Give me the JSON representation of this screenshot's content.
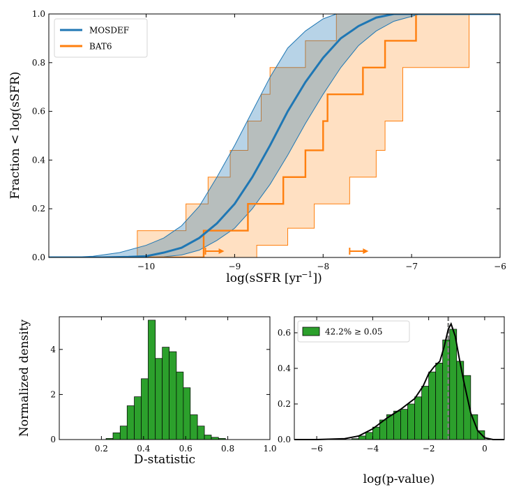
{
  "chart_data": [
    {
      "type": "line",
      "id": "cdf",
      "xlabel_main": "log(sSFR [yr",
      "xlabel_sup": "−1",
      "xlabel_close": "])",
      "ylabel": "Fraction < log(sSFR)",
      "xlim": [
        -11.1,
        -6.0
      ],
      "ylim": [
        0,
        1.0
      ],
      "xticks": [
        -10,
        -9,
        -8,
        -7,
        -6
      ],
      "xtick_labels": [
        "−10",
        "−9",
        "−8",
        "−7",
        "−6"
      ],
      "yticks": [
        0,
        0.2,
        0.4,
        0.6,
        0.8,
        1.0
      ],
      "ytick_labels": [
        "0.0",
        "0.2",
        "0.4",
        "0.6",
        "0.8",
        "1.0"
      ],
      "legend": [
        {
          "name": "MOSDEF",
          "color": "#1f77b4"
        },
        {
          "name": "BAT6",
          "color": "#ff7f0e"
        }
      ],
      "mosdef": {
        "color": "#1f77b4",
        "center": [
          [
            -11.1,
            0
          ],
          [
            -10.5,
            0.0
          ],
          [
            -10.2,
            0.002
          ],
          [
            -10.0,
            0.005
          ],
          [
            -9.8,
            0.02
          ],
          [
            -9.6,
            0.04
          ],
          [
            -9.4,
            0.08
          ],
          [
            -9.2,
            0.14
          ],
          [
            -9.0,
            0.22
          ],
          [
            -8.8,
            0.33
          ],
          [
            -8.6,
            0.46
          ],
          [
            -8.4,
            0.6
          ],
          [
            -8.2,
            0.72
          ],
          [
            -8.0,
            0.82
          ],
          [
            -7.8,
            0.9
          ],
          [
            -7.6,
            0.95
          ],
          [
            -7.4,
            0.985
          ],
          [
            -7.2,
            1.0
          ],
          [
            -6.0,
            1.0
          ]
        ],
        "lower": [
          [
            -11.1,
            0
          ],
          [
            -10.0,
            0.0
          ],
          [
            -9.8,
            0.003
          ],
          [
            -9.6,
            0.01
          ],
          [
            -9.4,
            0.03
          ],
          [
            -9.2,
            0.07
          ],
          [
            -9.0,
            0.12
          ],
          [
            -8.8,
            0.2
          ],
          [
            -8.6,
            0.3
          ],
          [
            -8.4,
            0.42
          ],
          [
            -8.2,
            0.55
          ],
          [
            -8.0,
            0.67
          ],
          [
            -7.8,
            0.78
          ],
          [
            -7.6,
            0.87
          ],
          [
            -7.4,
            0.93
          ],
          [
            -7.2,
            0.97
          ],
          [
            -7.0,
            0.99
          ],
          [
            -6.9,
            1.0
          ],
          [
            -6.0,
            1.0
          ]
        ],
        "upper": [
          [
            -11.1,
            0
          ],
          [
            -10.9,
            0.0
          ],
          [
            -10.6,
            0.005
          ],
          [
            -10.3,
            0.02
          ],
          [
            -10.0,
            0.05
          ],
          [
            -9.8,
            0.08
          ],
          [
            -9.6,
            0.13
          ],
          [
            -9.4,
            0.21
          ],
          [
            -9.2,
            0.33
          ],
          [
            -9.0,
            0.46
          ],
          [
            -8.8,
            0.6
          ],
          [
            -8.6,
            0.74
          ],
          [
            -8.4,
            0.86
          ],
          [
            -8.2,
            0.93
          ],
          [
            -8.0,
            0.98
          ],
          [
            -7.85,
            1.0
          ],
          [
            -6.0,
            1.0
          ]
        ]
      },
      "bat6": {
        "color": "#ff7f0e",
        "fill": "#ffcc99",
        "center": [
          [
            -11.1,
            0
          ],
          [
            -9.35,
            0
          ],
          [
            -9.35,
            0.11
          ],
          [
            -8.85,
            0.11
          ],
          [
            -8.85,
            0.22
          ],
          [
            -8.45,
            0.22
          ],
          [
            -8.45,
            0.33
          ],
          [
            -8.2,
            0.33
          ],
          [
            -8.2,
            0.44
          ],
          [
            -8.0,
            0.44
          ],
          [
            -8.0,
            0.56
          ],
          [
            -7.95,
            0.56
          ],
          [
            -7.95,
            0.67
          ],
          [
            -7.55,
            0.67
          ],
          [
            -7.55,
            0.78
          ],
          [
            -7.3,
            0.78
          ],
          [
            -7.3,
            0.89
          ],
          [
            -6.95,
            0.89
          ],
          [
            -6.95,
            1.0
          ],
          [
            -6.0,
            1.0
          ]
        ],
        "lower": [
          [
            -11.1,
            0
          ],
          [
            -8.75,
            0
          ],
          [
            -8.75,
            0.05
          ],
          [
            -8.4,
            0.05
          ],
          [
            -8.4,
            0.12
          ],
          [
            -8.1,
            0.12
          ],
          [
            -8.1,
            0.22
          ],
          [
            -7.7,
            0.22
          ],
          [
            -7.7,
            0.33
          ],
          [
            -7.4,
            0.33
          ],
          [
            -7.4,
            0.44
          ],
          [
            -7.3,
            0.44
          ],
          [
            -7.3,
            0.56
          ],
          [
            -7.1,
            0.56
          ],
          [
            -7.1,
            0.78
          ],
          [
            -6.35,
            0.78
          ],
          [
            -6.35,
            1.0
          ],
          [
            -6.0,
            1.0
          ]
        ],
        "upper": [
          [
            -11.1,
            0
          ],
          [
            -10.1,
            0
          ],
          [
            -10.1,
            0.11
          ],
          [
            -9.55,
            0.11
          ],
          [
            -9.55,
            0.22
          ],
          [
            -9.3,
            0.22
          ],
          [
            -9.3,
            0.33
          ],
          [
            -9.05,
            0.33
          ],
          [
            -9.05,
            0.44
          ],
          [
            -8.85,
            0.44
          ],
          [
            -8.85,
            0.56
          ],
          [
            -8.7,
            0.56
          ],
          [
            -8.7,
            0.67
          ],
          [
            -8.6,
            0.67
          ],
          [
            -8.6,
            0.78
          ],
          [
            -8.2,
            0.78
          ],
          [
            -8.2,
            0.89
          ],
          [
            -7.85,
            0.89
          ],
          [
            -7.85,
            1.0
          ],
          [
            -6.0,
            1.0
          ]
        ],
        "limit_arrows": [
          -9.33,
          -7.7
        ]
      }
    },
    {
      "type": "bar",
      "id": "dstat",
      "xlabel": "D-statistic",
      "ylabel": "Normalized density",
      "xlim": [
        0.0,
        1.0
      ],
      "ylim": [
        0,
        5.45
      ],
      "xticks": [
        0.2,
        0.4,
        0.6,
        0.8,
        1.0
      ],
      "xtick_labels": [
        "0.2",
        "0.4",
        "0.6",
        "0.8",
        "1.0"
      ],
      "yticks": [
        0,
        2,
        4
      ],
      "ytick_labels": [
        "0",
        "2",
        "4"
      ],
      "color": "#2ca02c",
      "bin_edges": [
        0.222,
        0.255,
        0.289,
        0.322,
        0.356,
        0.389,
        0.422,
        0.456,
        0.489,
        0.522,
        0.556,
        0.589,
        0.622,
        0.656,
        0.689,
        0.722,
        0.756,
        0.789
      ],
      "values": [
        0.05,
        0.3,
        0.6,
        1.5,
        1.9,
        2.7,
        5.3,
        3.6,
        4.1,
        3.9,
        3.0,
        2.3,
        1.1,
        0.6,
        0.2,
        0.1,
        0.05
      ]
    },
    {
      "type": "bar",
      "id": "pval",
      "xlabel": "log(p-value)",
      "xlim": [
        -6.8,
        0.7
      ],
      "ylim": [
        0,
        0.69
      ],
      "xticks": [
        -6,
        -4,
        -2,
        0
      ],
      "xtick_labels": [
        "−6",
        "−4",
        "−2",
        "0"
      ],
      "yticks": [
        0,
        0.2,
        0.4,
        0.6
      ],
      "ytick_labels": [
        "0.0",
        "0.2",
        "0.4",
        "0.6"
      ],
      "color": "#2ca02c",
      "legend": "42.2% ≥ 0.05",
      "vline": -1.3,
      "bin_edges": [
        -4.75,
        -4.5,
        -4.25,
        -4.0,
        -3.75,
        -3.5,
        -3.25,
        -3.0,
        -2.75,
        -2.5,
        -2.25,
        -2.0,
        -1.75,
        -1.5,
        -1.25,
        -1.0,
        -0.75,
        -0.5,
        -0.25,
        0.0
      ],
      "values": [
        0.005,
        0.02,
        0.04,
        0.07,
        0.11,
        0.14,
        0.16,
        0.17,
        0.2,
        0.24,
        0.3,
        0.38,
        0.43,
        0.56,
        0.62,
        0.44,
        0.36,
        0.14,
        0.05
      ],
      "kde": [
        [
          -6.8,
          0
        ],
        [
          -6,
          0.0
        ],
        [
          -5,
          0.005
        ],
        [
          -4.5,
          0.02
        ],
        [
          -4,
          0.06
        ],
        [
          -3.5,
          0.12
        ],
        [
          -3,
          0.17
        ],
        [
          -2.5,
          0.23
        ],
        [
          -2.2,
          0.3
        ],
        [
          -2,
          0.37
        ],
        [
          -1.8,
          0.41
        ],
        [
          -1.6,
          0.44
        ],
        [
          -1.45,
          0.52
        ],
        [
          -1.3,
          0.62
        ],
        [
          -1.2,
          0.65
        ],
        [
          -1.05,
          0.58
        ],
        [
          -0.9,
          0.45
        ],
        [
          -0.75,
          0.33
        ],
        [
          -0.5,
          0.15
        ],
        [
          -0.25,
          0.05
        ],
        [
          0,
          0.01
        ],
        [
          0.3,
          0.0
        ],
        [
          0.7,
          0.0
        ]
      ]
    }
  ]
}
